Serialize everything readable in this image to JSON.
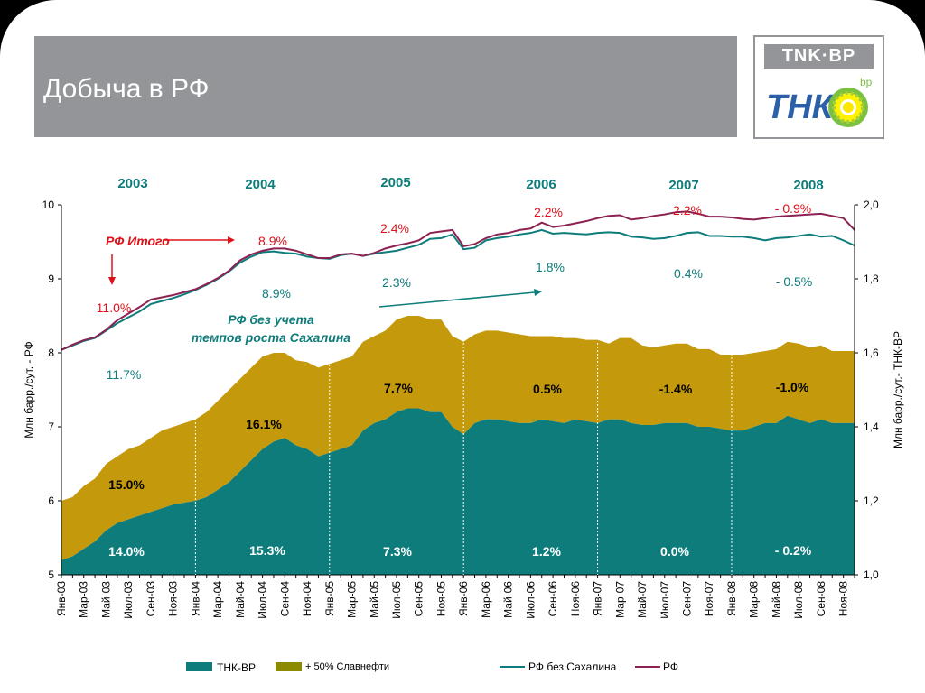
{
  "slide": {
    "title": "Добыча в РФ",
    "logo_text": "TNK·BP",
    "logo_tnk": "ТНК",
    "logo_bp": "bp"
  },
  "colors": {
    "tnk_bp": "#0E7C7B",
    "slavneft": "#C49A0C",
    "rf_without_sakhalin": "#0E7C7B",
    "rf": "#8B2252",
    "red_text": "#E0101A",
    "teal_text": "#0E7C7B"
  },
  "chart_data": {
    "type": "area",
    "x": [
      "Янв-03",
      "Фев-03",
      "Мар-03",
      "Апр-03",
      "Май-03",
      "Июн-03",
      "Июл-03",
      "Авг-03",
      "Сен-03",
      "Окт-03",
      "Ноя-03",
      "Дек-03",
      "Янв-04",
      "Фев-04",
      "Мар-04",
      "Апр-04",
      "Май-04",
      "Июн-04",
      "Июл-04",
      "Авг-04",
      "Сен-04",
      "Окт-04",
      "Ноя-04",
      "Дек-04",
      "Янв-05",
      "Фев-05",
      "Мар-05",
      "Апр-05",
      "Май-05",
      "Июн-05",
      "Июл-05",
      "Авг-05",
      "Сен-05",
      "Окт-05",
      "Ноя-05",
      "Дек-05",
      "Янв-06",
      "Фев-06",
      "Мар-06",
      "Апр-06",
      "Май-06",
      "Июн-06",
      "Июл-06",
      "Авг-06",
      "Сен-06",
      "Окт-06",
      "Ноя-06",
      "Дек-06",
      "Янв-07",
      "Фев-07",
      "Мар-07",
      "Апр-07",
      "Май-07",
      "Июн-07",
      "Июл-07",
      "Авг-07",
      "Сен-07",
      "Окт-07",
      "Ноя-07",
      "Дек-07",
      "Янв-08",
      "Фев-08",
      "Мар-08",
      "Апр-08",
      "Май-08",
      "Июн-08",
      "Июл-08",
      "Авг-08",
      "Сен-08",
      "Окт-08",
      "Ноя-08",
      "Дек-08"
    ],
    "x_tick_labels": [
      "Янв-03",
      "Мар-03",
      "Май-03",
      "Июл-03",
      "Сен-03",
      "Ноя-03",
      "Янв-04",
      "Мар-04",
      "Май-04",
      "Июл-04",
      "Сен-04",
      "Ноя-04",
      "Янв-05",
      "Мар-05",
      "Май-05",
      "Июл-05",
      "Сен-05",
      "Ноя-05",
      "Янв-06",
      "Мар-06",
      "Май-06",
      "Июл-06",
      "Сен-06",
      "Ноя-06",
      "Янв-07",
      "Мар-07",
      "Май-07",
      "Июл-07",
      "Сен-07",
      "Ноя-07",
      "Янв-08",
      "Мар-08",
      "Май-08",
      "Июл-08",
      "Сен-08",
      "Ноя-08"
    ],
    "year_labels": [
      "2003",
      "2004",
      "2005",
      "2006",
      "2007",
      "2008"
    ],
    "ylabel_left": "Млн барр./сут. - РФ",
    "ylabel_right": "Млн барр./сут.- ТНК-ВР",
    "ylim_left": [
      5,
      10
    ],
    "ylim_right": [
      1.0,
      2.0
    ],
    "yticks_left": [
      "5",
      "6",
      "7",
      "8",
      "9",
      "10"
    ],
    "yticks_right": [
      "1,0",
      "1,2",
      "1,4",
      "1,6",
      "1,8",
      "2,0"
    ],
    "series": [
      {
        "name": "ТНК-ВР",
        "axis": "right",
        "type": "area",
        "values": [
          1.04,
          1.05,
          1.07,
          1.09,
          1.12,
          1.14,
          1.15,
          1.16,
          1.17,
          1.18,
          1.19,
          1.195,
          1.2,
          1.21,
          1.23,
          1.25,
          1.28,
          1.31,
          1.34,
          1.36,
          1.37,
          1.35,
          1.34,
          1.32,
          1.33,
          1.34,
          1.35,
          1.39,
          1.41,
          1.42,
          1.44,
          1.45,
          1.45,
          1.44,
          1.44,
          1.4,
          1.38,
          1.41,
          1.42,
          1.42,
          1.415,
          1.41,
          1.41,
          1.42,
          1.415,
          1.41,
          1.42,
          1.415,
          1.41,
          1.42,
          1.42,
          1.41,
          1.405,
          1.405,
          1.41,
          1.41,
          1.41,
          1.4,
          1.4,
          1.395,
          1.39,
          1.39,
          1.4,
          1.41,
          1.41,
          1.43,
          1.42,
          1.41,
          1.42,
          1.41,
          1.41,
          1.41
        ]
      },
      {
        "name": "+ 50% Славнефти",
        "axis": "right",
        "type": "area",
        "values": [
          1.2,
          1.21,
          1.24,
          1.26,
          1.3,
          1.32,
          1.34,
          1.35,
          1.37,
          1.39,
          1.4,
          1.41,
          1.42,
          1.44,
          1.47,
          1.5,
          1.53,
          1.56,
          1.59,
          1.6,
          1.6,
          1.58,
          1.575,
          1.56,
          1.57,
          1.58,
          1.59,
          1.63,
          1.645,
          1.66,
          1.69,
          1.7,
          1.7,
          1.69,
          1.69,
          1.645,
          1.63,
          1.65,
          1.66,
          1.66,
          1.655,
          1.65,
          1.645,
          1.645,
          1.645,
          1.64,
          1.64,
          1.635,
          1.635,
          1.625,
          1.64,
          1.64,
          1.62,
          1.615,
          1.62,
          1.625,
          1.625,
          1.61,
          1.61,
          1.595,
          1.595,
          1.595,
          1.6,
          1.605,
          1.61,
          1.63,
          1.625,
          1.615,
          1.62,
          1.605,
          1.605,
          1.605
        ]
      },
      {
        "name": "РФ без Сахалина",
        "axis": "left",
        "type": "line",
        "values": [
          8.04,
          8.1,
          8.16,
          8.2,
          8.3,
          8.4,
          8.48,
          8.56,
          8.66,
          8.7,
          8.74,
          8.79,
          8.85,
          8.92,
          9.0,
          9.1,
          9.22,
          9.3,
          9.36,
          9.37,
          9.35,
          9.34,
          9.3,
          9.28,
          9.27,
          9.32,
          9.34,
          9.31,
          9.34,
          9.36,
          9.38,
          9.42,
          9.46,
          9.54,
          9.55,
          9.6,
          9.4,
          9.42,
          9.52,
          9.55,
          9.57,
          9.6,
          9.62,
          9.66,
          9.61,
          9.62,
          9.61,
          9.6,
          9.62,
          9.63,
          9.62,
          9.57,
          9.56,
          9.54,
          9.55,
          9.58,
          9.62,
          9.63,
          9.58,
          9.58,
          9.57,
          9.57,
          9.55,
          9.52,
          9.55,
          9.56,
          9.58,
          9.6,
          9.57,
          9.58,
          9.52,
          9.45
        ]
      },
      {
        "name": "РФ",
        "axis": "left",
        "type": "line",
        "values": [
          8.04,
          8.11,
          8.17,
          8.21,
          8.31,
          8.44,
          8.53,
          8.62,
          8.72,
          8.75,
          8.78,
          8.82,
          8.86,
          8.93,
          9.01,
          9.11,
          9.25,
          9.33,
          9.38,
          9.41,
          9.41,
          9.38,
          9.33,
          9.28,
          9.28,
          9.33,
          9.34,
          9.31,
          9.35,
          9.41,
          9.45,
          9.48,
          9.52,
          9.62,
          9.64,
          9.66,
          9.44,
          9.47,
          9.55,
          9.6,
          9.62,
          9.66,
          9.68,
          9.76,
          9.7,
          9.72,
          9.75,
          9.78,
          9.82,
          9.85,
          9.86,
          9.8,
          9.82,
          9.85,
          9.87,
          9.9,
          9.91,
          9.88,
          9.84,
          9.84,
          9.83,
          9.81,
          9.8,
          9.82,
          9.84,
          9.85,
          9.86,
          9.87,
          9.88,
          9.85,
          9.82,
          9.66
        ]
      }
    ],
    "legend": {
      "placement": "bottom"
    },
    "annotations": [
      {
        "text": "РФ Итого",
        "style": "red-italic"
      },
      {
        "text": "РФ без учета темпов роста Сахалина",
        "style": "teal-italic"
      },
      {
        "text": "11.0%",
        "style": "red"
      },
      {
        "text": "8.9%",
        "style": "red"
      },
      {
        "text": "2.4%",
        "style": "red"
      },
      {
        "text": "2.2%",
        "style": "red"
      },
      {
        "text": "2.2%",
        "style": "red"
      },
      {
        "text": "- 0.9%",
        "style": "red"
      },
      {
        "text": "11.7%",
        "style": "teal"
      },
      {
        "text": "8.9%",
        "style": "teal"
      },
      {
        "text": "2.3%",
        "style": "teal"
      },
      {
        "text": "1.8%",
        "style": "teal"
      },
      {
        "text": "0.4%",
        "style": "teal"
      },
      {
        "text": "- 0.5%",
        "style": "teal"
      },
      {
        "text": "15.0%",
        "style": "black"
      },
      {
        "text": "16.1%",
        "style": "black"
      },
      {
        "text": "7.7%",
        "style": "black"
      },
      {
        "text": "0.5%",
        "style": "black"
      },
      {
        "text": "-1.4%",
        "style": "black"
      },
      {
        "text": "-1.0%",
        "style": "black"
      },
      {
        "text": "14.0%",
        "style": "white"
      },
      {
        "text": "15.3%",
        "style": "white"
      },
      {
        "text": "7.3%",
        "style": "white"
      },
      {
        "text": "1.2%",
        "style": "white"
      },
      {
        "text": "0.0%",
        "style": "white"
      },
      {
        "text": "- 0.2%",
        "style": "white"
      }
    ]
  }
}
